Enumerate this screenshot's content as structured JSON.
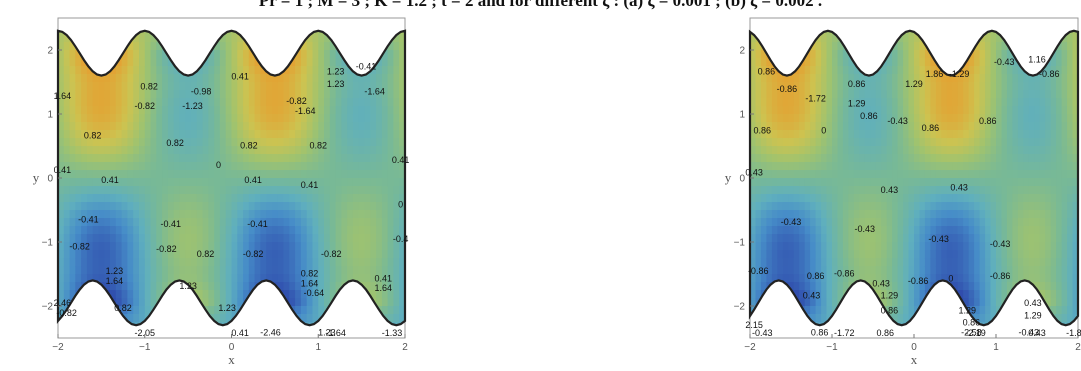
{
  "caption": "Pr = 1 ; M = 3 ; K = 1.2 ; t = 2 and for different ζ : (a) ζ = 0.001 ; (b) ζ = 0.002 .",
  "chart_data": [
    {
      "type": "contour",
      "panel": "a",
      "xlabel": "x",
      "ylabel": "y",
      "xlim": [
        -2,
        2
      ],
      "ylim": [
        -2.5,
        2.5
      ],
      "xticks": [
        -2,
        -1,
        0,
        1,
        2
      ],
      "yticks": [
        -2,
        -1,
        0,
        1,
        2
      ],
      "contour_labels": [
        {
          "x": -1.95,
          "y": 1.6,
          "v": "1.64"
        },
        {
          "x": -0.95,
          "y": 1.8,
          "v": "0.82"
        },
        {
          "x": -1.0,
          "y": 1.4,
          "v": "-0.82"
        },
        {
          "x": -0.35,
          "y": 1.7,
          "v": "-0.98"
        },
        {
          "x": -0.45,
          "y": 1.4,
          "v": "-1.23"
        },
        {
          "x": 0.1,
          "y": 2.0,
          "v": "0.41"
        },
        {
          "x": 0.75,
          "y": 1.5,
          "v": "-0.82"
        },
        {
          "x": 0.85,
          "y": 1.3,
          "v": "-1.64"
        },
        {
          "x": 1.2,
          "y": 2.1,
          "v": "1.23"
        },
        {
          "x": 1.2,
          "y": 1.85,
          "v": "1.23"
        },
        {
          "x": 1.55,
          "y": 2.2,
          "v": "-0.41"
        },
        {
          "x": 1.65,
          "y": 1.7,
          "v": "-1.64"
        },
        {
          "x": -1.6,
          "y": 0.8,
          "v": "0.82"
        },
        {
          "x": -0.65,
          "y": 0.65,
          "v": "0.82"
        },
        {
          "x": -0.15,
          "y": 0.2,
          "v": "0"
        },
        {
          "x": 0.2,
          "y": 0.6,
          "v": "0.82"
        },
        {
          "x": 1.0,
          "y": 0.6,
          "v": "0.82"
        },
        {
          "x": -1.95,
          "y": 0.1,
          "v": "0.41"
        },
        {
          "x": -1.4,
          "y": -0.1,
          "v": "0.41"
        },
        {
          "x": 0.25,
          "y": -0.1,
          "v": "0.41"
        },
        {
          "x": 0.9,
          "y": -0.2,
          "v": "0.41"
        },
        {
          "x": 1.95,
          "y": 0.3,
          "v": "0.41"
        },
        {
          "x": 1.95,
          "y": -0.6,
          "v": "0"
        },
        {
          "x": -1.65,
          "y": -0.9,
          "v": "-0.41"
        },
        {
          "x": -0.7,
          "y": -1.0,
          "v": "-0.41"
        },
        {
          "x": 0.3,
          "y": -1.0,
          "v": "-0.41"
        },
        {
          "x": 1.95,
          "y": -1.3,
          "v": "-0.4"
        },
        {
          "x": -1.75,
          "y": -1.45,
          "v": "-0.82"
        },
        {
          "x": -0.75,
          "y": -1.5,
          "v": "-0.82"
        },
        {
          "x": -0.3,
          "y": -1.6,
          "v": "0.82"
        },
        {
          "x": 0.25,
          "y": -1.6,
          "v": "-0.82"
        },
        {
          "x": 1.15,
          "y": -1.6,
          "v": "-0.82"
        },
        {
          "x": -1.35,
          "y": -1.95,
          "v": "1.23"
        },
        {
          "x": -1.35,
          "y": -2.15,
          "v": "1.64"
        },
        {
          "x": -0.5,
          "y": -2.25,
          "v": "1.23"
        },
        {
          "x": 0.9,
          "y": -2.0,
          "v": "0.82"
        },
        {
          "x": 0.9,
          "y": -2.2,
          "v": "1.64"
        },
        {
          "x": 0.95,
          "y": -2.4,
          "v": "-0.64"
        },
        {
          "x": 1.75,
          "y": -2.1,
          "v": "0.41"
        },
        {
          "x": 1.75,
          "y": -2.3,
          "v": "1.64"
        },
        {
          "x": -1.95,
          "y": -2.6,
          "v": "2.46"
        },
        {
          "x": -1.9,
          "y": -2.8,
          "v": "-0.82"
        },
        {
          "x": -1.25,
          "y": -2.7,
          "v": "0.82"
        },
        {
          "x": -0.05,
          "y": -2.7,
          "v": "1.23"
        },
        {
          "x": 0.45,
          "y": -3.2,
          "v": "-2.46"
        },
        {
          "x": -1.0,
          "y": -3.35,
          "v": "-2.05"
        },
        {
          "x": 0.1,
          "y": -3.4,
          "v": "0.41"
        },
        {
          "x": 1.1,
          "y": -3.2,
          "v": "1.23"
        },
        {
          "x": 1.2,
          "y": -3.45,
          "v": "-1.64"
        },
        {
          "x": 1.85,
          "y": -3.45,
          "v": "-1.33"
        }
      ]
    },
    {
      "type": "contour",
      "panel": "b",
      "xlabel": "x",
      "ylabel": "y",
      "xlim": [
        -2,
        2
      ],
      "ylim": [
        -2.5,
        2.5
      ],
      "xticks": [
        -2,
        -1,
        0,
        1,
        2
      ],
      "yticks": [
        -2,
        -1,
        0,
        1,
        2
      ],
      "contour_labels": [
        {
          "x": -1.8,
          "y": 2.1,
          "v": "0.86"
        },
        {
          "x": -1.55,
          "y": 1.75,
          "v": "-0.86"
        },
        {
          "x": -1.2,
          "y": 1.55,
          "v": "-1.72"
        },
        {
          "x": -0.7,
          "y": 1.85,
          "v": "0.86"
        },
        {
          "x": -0.7,
          "y": 1.45,
          "v": "1.29"
        },
        {
          "x": -0.55,
          "y": 1.2,
          "v": "0.86"
        },
        {
          "x": -0.2,
          "y": 1.1,
          "v": "-0.43"
        },
        {
          "x": 0.0,
          "y": 1.85,
          "v": "1.29"
        },
        {
          "x": 0.25,
          "y": 2.05,
          "v": "1.86"
        },
        {
          "x": 0.55,
          "y": 2.05,
          "v": "-1.29"
        },
        {
          "x": 0.2,
          "y": 0.95,
          "v": "0.86"
        },
        {
          "x": 0.9,
          "y": 1.1,
          "v": "0.86"
        },
        {
          "x": 1.1,
          "y": 2.3,
          "v": "-0.43"
        },
        {
          "x": 1.5,
          "y": 2.35,
          "v": "1.16"
        },
        {
          "x": 1.65,
          "y": 2.05,
          "v": "-0.86"
        },
        {
          "x": -1.85,
          "y": 0.9,
          "v": "0.86"
        },
        {
          "x": -1.1,
          "y": 0.9,
          "v": "0"
        },
        {
          "x": -1.95,
          "y": 0.05,
          "v": "0.43"
        },
        {
          "x": -0.3,
          "y": -0.3,
          "v": "0.43"
        },
        {
          "x": 0.55,
          "y": -0.25,
          "v": "0.43"
        },
        {
          "x": -1.5,
          "y": -0.95,
          "v": "-0.43"
        },
        {
          "x": -0.6,
          "y": -1.1,
          "v": "-0.43"
        },
        {
          "x": 0.3,
          "y": -1.3,
          "v": "-0.43"
        },
        {
          "x": 1.05,
          "y": -1.4,
          "v": "-0.43"
        },
        {
          "x": -1.9,
          "y": -1.95,
          "v": "-0.86"
        },
        {
          "x": -1.2,
          "y": -2.05,
          "v": "0.86"
        },
        {
          "x": -0.85,
          "y": -2.0,
          "v": "-0.86"
        },
        {
          "x": -0.4,
          "y": -2.2,
          "v": "0.43"
        },
        {
          "x": 0.05,
          "y": -2.15,
          "v": "-0.86"
        },
        {
          "x": 0.45,
          "y": -2.1,
          "v": "0"
        },
        {
          "x": 1.05,
          "y": -2.05,
          "v": "-0.86"
        },
        {
          "x": -1.25,
          "y": -2.45,
          "v": "0.43"
        },
        {
          "x": -0.3,
          "y": -2.45,
          "v": "1.29"
        },
        {
          "x": -0.3,
          "y": -2.75,
          "v": "0.86"
        },
        {
          "x": 0.65,
          "y": -2.75,
          "v": "1.29"
        },
        {
          "x": 1.45,
          "y": -2.6,
          "v": "0.43"
        },
        {
          "x": 1.45,
          "y": -2.85,
          "v": "1.29"
        },
        {
          "x": -1.95,
          "y": -3.05,
          "v": "2.15"
        },
        {
          "x": -1.85,
          "y": -3.3,
          "v": "-0.43"
        },
        {
          "x": -1.15,
          "y": -3.2,
          "v": "0.86"
        },
        {
          "x": -0.35,
          "y": -3.3,
          "v": "0.86"
        },
        {
          "x": 0.7,
          "y": -3.2,
          "v": "-2.58"
        },
        {
          "x": 0.7,
          "y": -3.0,
          "v": "0.86"
        },
        {
          "x": -0.85,
          "y": -3.6,
          "v": "-1.72"
        },
        {
          "x": 1.4,
          "y": -3.2,
          "v": "-0.43"
        },
        {
          "x": 1.5,
          "y": -3.4,
          "v": "0.43"
        },
        {
          "x": 0.75,
          "y": -3.95,
          "v": "-2.19"
        },
        {
          "x": 1.95,
          "y": -3.95,
          "v": "-1.8"
        }
      ]
    }
  ]
}
